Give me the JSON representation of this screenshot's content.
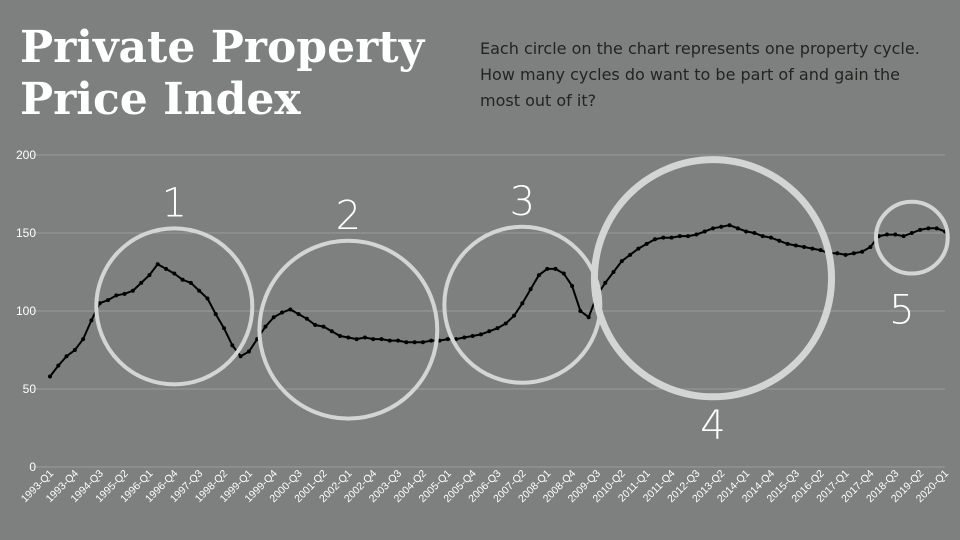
{
  "header": {
    "title_line1": "Private Property",
    "title_line2": "Price Index",
    "description": "Each circle on the chart represents one property cycle. How many cycles do want to be part of and gain the most out of it?"
  },
  "colors": {
    "background": "#7d807f",
    "line": "#000000",
    "circle": "#d3d5d4",
    "grid": "#9a9c9b",
    "axis_text": "#ffffff"
  },
  "chart_data": {
    "type": "line",
    "title": "",
    "xlabel": "",
    "ylabel": "",
    "ylim": [
      0,
      200
    ],
    "yticks": [
      0,
      50,
      100,
      150,
      200
    ],
    "grid": true,
    "x": [
      "1993-Q1",
      "1993-Q2",
      "1993-Q3",
      "1993-Q4",
      "1994-Q1",
      "1994-Q2",
      "1994-Q3",
      "1994-Q4",
      "1995-Q1",
      "1995-Q2",
      "1995-Q3",
      "1995-Q4",
      "1996-Q1",
      "1996-Q2",
      "1996-Q3",
      "1996-Q4",
      "1997-Q1",
      "1997-Q2",
      "1997-Q3",
      "1997-Q4",
      "1998-Q1",
      "1998-Q2",
      "1998-Q3",
      "1998-Q4",
      "1999-Q1",
      "1999-Q2",
      "1999-Q3",
      "1999-Q4",
      "2000-Q1",
      "2000-Q2",
      "2000-Q3",
      "2000-Q4",
      "2001-Q1",
      "2001-Q2",
      "2001-Q3",
      "2001-Q4",
      "2002-Q1",
      "2002-Q2",
      "2002-Q3",
      "2002-Q4",
      "2003-Q1",
      "2003-Q2",
      "2003-Q3",
      "2003-Q4",
      "2004-Q1",
      "2004-Q2",
      "2004-Q3",
      "2004-Q4",
      "2005-Q1",
      "2005-Q2",
      "2005-Q3",
      "2005-Q4",
      "2006-Q1",
      "2006-Q2",
      "2006-Q3",
      "2006-Q4",
      "2007-Q1",
      "2007-Q2",
      "2007-Q3",
      "2007-Q4",
      "2008-Q1",
      "2008-Q2",
      "2008-Q3",
      "2008-Q4",
      "2009-Q1",
      "2009-Q2",
      "2009-Q3",
      "2009-Q4",
      "2010-Q1",
      "2010-Q2",
      "2010-Q3",
      "2010-Q4",
      "2011-Q1",
      "2011-Q2",
      "2011-Q3",
      "2011-Q4",
      "2012-Q1",
      "2012-Q2",
      "2012-Q3",
      "2012-Q4",
      "2013-Q1",
      "2013-Q2",
      "2013-Q3",
      "2013-Q4",
      "2014-Q1",
      "2014-Q2",
      "2014-Q3",
      "2014-Q4",
      "2015-Q1",
      "2015-Q2",
      "2015-Q3",
      "2015-Q4",
      "2016-Q1",
      "2016-Q2",
      "2016-Q3",
      "2016-Q4",
      "2017-Q1",
      "2017-Q2",
      "2017-Q3",
      "2017-Q4",
      "2018-Q1",
      "2018-Q2",
      "2018-Q3",
      "2018-Q4",
      "2019-Q1",
      "2019-Q2",
      "2019-Q3",
      "2019-Q4",
      "2020-Q1"
    ],
    "xtick_labels": [
      "1993-Q1",
      "1993-Q4",
      "1994-Q3",
      "1995-Q2",
      "1996-Q1",
      "1996-Q4",
      "1997-Q3",
      "1998-Q2",
      "1999-Q1",
      "1999-Q4",
      "2000-Q3",
      "2001-Q2",
      "2002-Q1",
      "2002-Q4",
      "2003-Q3",
      "2004-Q2",
      "2005-Q1",
      "2005-Q4",
      "2006-Q3",
      "2007-Q2",
      "2008-Q1",
      "2008-Q4",
      "2009-Q3",
      "2010-Q2",
      "2011-Q1",
      "2011-Q4",
      "2012-Q3",
      "2013-Q2",
      "2014-Q1",
      "2014-Q4",
      "2015-Q3",
      "2016-Q2",
      "2017-Q1",
      "2017-Q4",
      "2018-Q3",
      "2019-Q2",
      "2020-Q1"
    ],
    "series": [
      {
        "values": [
          58,
          65,
          71,
          75,
          82,
          94,
          105,
          107,
          110,
          111,
          113,
          118,
          123,
          130,
          127,
          124,
          120,
          118,
          113,
          108,
          98,
          89,
          78,
          71,
          74,
          82,
          90,
          96,
          99,
          101,
          98,
          95,
          91,
          90,
          87,
          84,
          83,
          82,
          83,
          82,
          82,
          81,
          81,
          80,
          80,
          80,
          81,
          81,
          82,
          82,
          83,
          84,
          85,
          87,
          89,
          92,
          97,
          105,
          114,
          123,
          127,
          127,
          124,
          116,
          100,
          96,
          110,
          118,
          125,
          132,
          136,
          140,
          143,
          146,
          147,
          147,
          148,
          148,
          149,
          151,
          153,
          154,
          155,
          153,
          151,
          150,
          148,
          147,
          145,
          143,
          142,
          141,
          140,
          139,
          137,
          137,
          136,
          137,
          138,
          141,
          148,
          149,
          149,
          148,
          150,
          152,
          153,
          153,
          151
        ]
      }
    ],
    "annotations": [
      {
        "label": "1",
        "center": [
          "1996-Q4",
          103
        ],
        "radius_y": 50
      },
      {
        "label": "2",
        "center": [
          "2002-Q1",
          88
        ],
        "radius_y": 57
      },
      {
        "label": "3",
        "center": [
          "2007-Q2",
          104
        ],
        "radius_y": 50
      },
      {
        "label": "4",
        "center": [
          "2013-Q1",
          121
        ],
        "radius_y": 76
      },
      {
        "label": "5",
        "center": [
          "2019-Q1",
          147
        ],
        "radius_y": 23
      }
    ]
  }
}
